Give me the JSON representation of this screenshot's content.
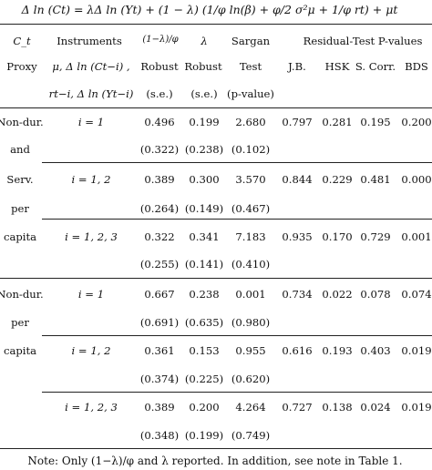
{
  "equation": "Δ ln (Ct) = λΔ ln (Yt) + (1 − λ) (1/φ ln(β) + φ/2 σ²μ + 1/φ rt) + μt",
  "header": {
    "col_ct": "C_t",
    "col_ct_sub": "Proxy",
    "col_instruments": "Instruments",
    "col_instruments_line2": "μ, Δ ln (Ct−i) ,",
    "col_instruments_line3": "rt−i, Δ ln (Yt−i)",
    "col_coef_frac": "(1−λ)/φ",
    "col_coef_sub": "Robust",
    "col_coef_se": "(s.e.)",
    "col_lambda": "λ",
    "col_lambda_sub": "Robust",
    "col_lambda_se": "(s.e.)",
    "col_sargan": "Sargan",
    "col_sargan_sub": "Test",
    "col_sargan_pv": "(p-value)",
    "col_residual": "Residual-Test P-values",
    "col_jb": "J.B.",
    "col_hsk": "HSK",
    "col_scorr": "S. Corr.",
    "col_bds": "BDS"
  },
  "proxies": {
    "group1": [
      "Non-dur.",
      "and",
      "Serv.",
      "per",
      "capita"
    ],
    "group2": [
      "Non-dur.",
      "per",
      "capita"
    ]
  },
  "rows": [
    {
      "instr": "i = 1",
      "coef": "0.496",
      "coef_se": "(0.322)",
      "lambda": "0.199",
      "lambda_se": "(0.238)",
      "sargan": "2.680",
      "sargan_p": "(0.102)",
      "jb": "0.797",
      "hsk": "0.281",
      "scorr": "0.195",
      "bds": "0.200"
    },
    {
      "instr": "i = 1, 2",
      "coef": "0.389",
      "coef_se": "(0.264)",
      "lambda": "0.300",
      "lambda_se": "(0.149)",
      "sargan": "3.570",
      "sargan_p": "(0.467)",
      "jb": "0.844",
      "hsk": "0.229",
      "scorr": "0.481",
      "bds": "0.000"
    },
    {
      "instr": "i = 1, 2, 3",
      "coef": "0.322",
      "coef_se": "(0.255)",
      "lambda": "0.341",
      "lambda_se": "(0.141)",
      "sargan": "7.183",
      "sargan_p": "(0.410)",
      "jb": "0.935",
      "hsk": "0.170",
      "scorr": "0.729",
      "bds": "0.001"
    },
    {
      "instr": "i = 1",
      "coef": "0.667",
      "coef_se": "(0.691)",
      "lambda": "0.238",
      "lambda_se": "(0.635)",
      "sargan": "0.001",
      "sargan_p": "(0.980)",
      "jb": "0.734",
      "hsk": "0.022",
      "scorr": "0.078",
      "bds": "0.074"
    },
    {
      "instr": "i = 1, 2",
      "coef": "0.361",
      "coef_se": "(0.374)",
      "lambda": "0.153",
      "lambda_se": "(0.225)",
      "sargan": "0.955",
      "sargan_p": "(0.620)",
      "jb": "0.616",
      "hsk": "0.193",
      "scorr": "0.403",
      "bds": "0.019"
    },
    {
      "instr": "i = 1, 2, 3",
      "coef": "0.389",
      "coef_se": "(0.348)",
      "lambda": "0.200",
      "lambda_se": "(0.199)",
      "sargan": "4.264",
      "sargan_p": "(0.749)",
      "jb": "0.727",
      "hsk": "0.138",
      "scorr": "0.024",
      "bds": "0.019"
    }
  ],
  "note": "Note: Only (1−λ)/φ and λ reported. In addition, see note in Table 1."
}
